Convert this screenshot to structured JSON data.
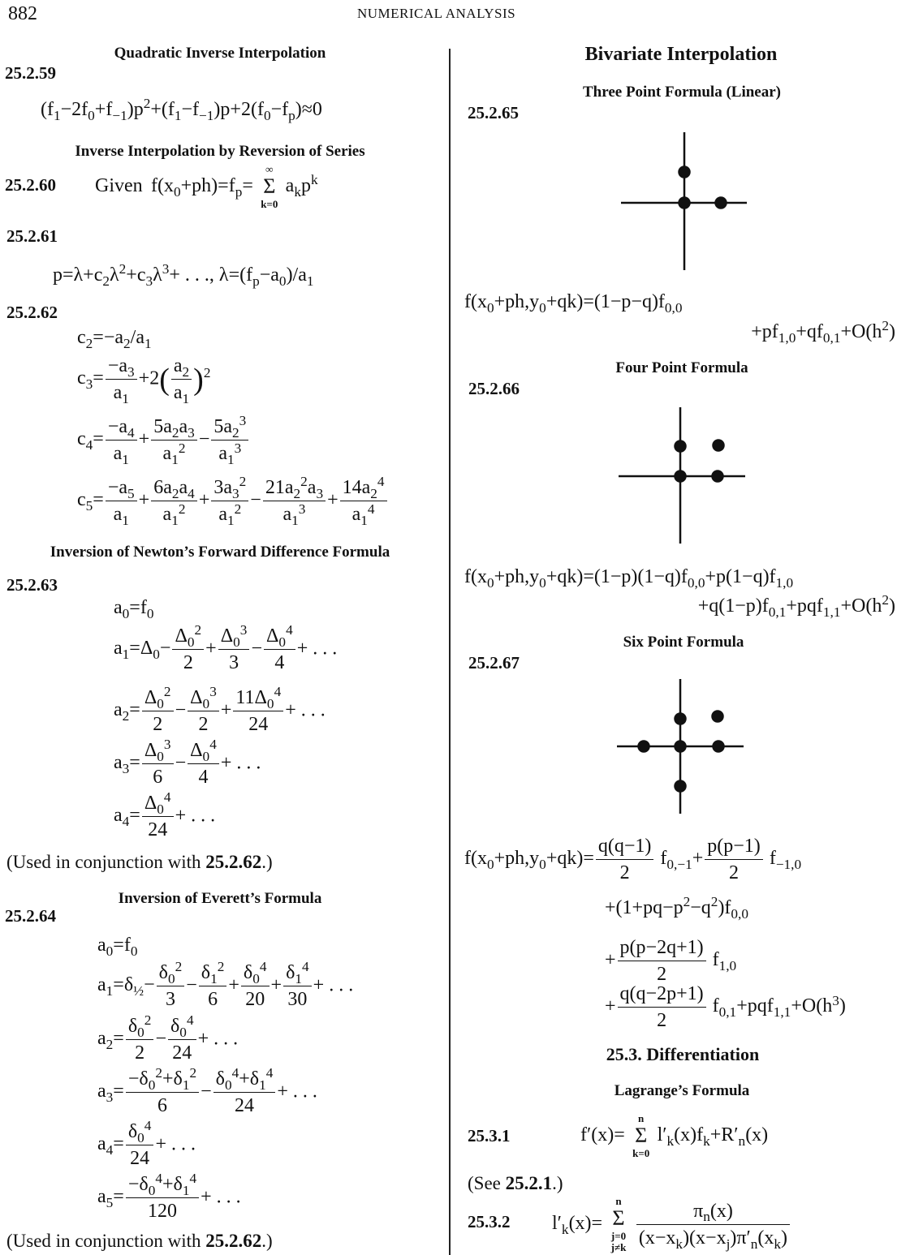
{
  "header": {
    "page_number": "882",
    "running_title": "NUMERICAL ANALYSIS"
  },
  "left": {
    "s1_title": "Quadratic Inverse Interpolation",
    "e59": {
      "label": "25.2.59",
      "f": [
        "(f_{1}−2f_{0}+f_{−1})p^{2}+(f_{1}−f_{−1})p+2(f_{0}−f_{p})≈0"
      ]
    },
    "s2_title": "Inverse Interpolation by Reversion of Series",
    "e60": {
      "label": "25.2.60",
      "given": "Given",
      "f": [
        "f(x_{0}+ph)=f_{p}=",
        {
          "sum": "Σ",
          "over": "∞",
          "under": "k=0"
        },
        "a_{k}p^{k}"
      ]
    },
    "e61": {
      "label": "25.2.61",
      "f": [
        "p=λ+c_{2}λ^{2}+c_{3}λ^{3}+ . . ., λ=(f_{p}−a_{0})/a_{1}"
      ]
    },
    "e62": {
      "label": "25.2.62",
      "c2": [
        "c_{2}=−a_{2}/a_{1}"
      ],
      "c3": [
        "c_{3}=",
        {
          "n": "−a_{3}",
          "d": "a_{1}"
        },
        "+2",
        {
          "big": "("
        },
        {
          "n": "a_{2}",
          "d": "a_{1}"
        },
        {
          "big": ")"
        },
        "^{2}"
      ],
      "c4": [
        "c_{4}=",
        {
          "n": "−a_{4}",
          "d": "a_{1}"
        },
        "+",
        {
          "n": "5a_{2}a_{3}",
          "d": "a_{1}^{2}"
        },
        "−",
        {
          "n": "5a_{2}^{3}",
          "d": "a_{1}^{3}"
        }
      ],
      "c5": [
        "c_{5}=",
        {
          "n": "−a_{5}",
          "d": "a_{1}"
        },
        "+",
        {
          "n": "6a_{2}a_{4}",
          "d": "a_{1}^{2}"
        },
        "+",
        {
          "n": "3a_{3}^{2}",
          "d": "a_{1}^{2}"
        },
        "−",
        {
          "n": "21a_{2}^{2}a_{3}",
          "d": "a_{1}^{3}"
        },
        "+",
        {
          "n": "14a_{2}^{4}",
          "d": "a_{1}^{4}"
        }
      ]
    },
    "s3_title": "Inversion of Newton’s Forward Difference Formula",
    "e63": {
      "label": "25.2.63",
      "a0": [
        "a_{0}=f_{0}"
      ],
      "a1": [
        "a_{1}=Δ_{0}−",
        {
          "n": "Δ_{0}^{2}",
          "d": "2"
        },
        "+",
        {
          "n": "Δ_{0}^{3}",
          "d": "3"
        },
        "−",
        {
          "n": "Δ_{0}^{4}",
          "d": "4"
        },
        "+ . . ."
      ],
      "a2": [
        "a_{2}=",
        {
          "n": "Δ_{0}^{2}",
          "d": "2"
        },
        "−",
        {
          "n": "Δ_{0}^{3}",
          "d": "2"
        },
        "+",
        {
          "n": "11Δ_{0}^{4}",
          "d": "24"
        },
        "+ . . ."
      ],
      "a3": [
        "a_{3}=",
        {
          "n": "Δ_{0}^{3}",
          "d": "6"
        },
        "−",
        {
          "n": "Δ_{0}^{4}",
          "d": "4"
        },
        "+ . . ."
      ],
      "a4": [
        "a_{4}=",
        {
          "n": "Δ_{0}^{4}",
          "d": "24"
        },
        "+ . . ."
      ]
    },
    "note1": {
      "pre": "(Used in conjunction with ",
      "ref": "25.2.62",
      "post": ".)"
    },
    "s4_title": "Inversion of Everett’s Formula",
    "e64": {
      "label": "25.2.64",
      "a0": [
        "a_{0}=f_{0}"
      ],
      "a1": [
        "a_{1}=δ_{½}−",
        {
          "n": "δ_{0}^{2}",
          "d": "3"
        },
        "−",
        {
          "n": "δ_{1}^{2}",
          "d": "6"
        },
        "+",
        {
          "n": "δ_{0}^{4}",
          "d": "20"
        },
        "+",
        {
          "n": "δ_{1}^{4}",
          "d": "30"
        },
        "+ . . ."
      ],
      "a2": [
        "a_{2}=",
        {
          "n": "δ_{0}^{2}",
          "d": "2"
        },
        "−",
        {
          "n": "δ_{0}^{4}",
          "d": "24"
        },
        "+ . . ."
      ],
      "a3": [
        "a_{3}=",
        {
          "n": "−δ_{0}^{2}+δ_{1}^{2}",
          "d": "6"
        },
        "−",
        {
          "n": "δ_{0}^{4}+δ_{1}^{4}",
          "d": "24"
        },
        "+ . . ."
      ],
      "a4": [
        "a_{4}=",
        {
          "n": "δ_{0}^{4}",
          "d": "24"
        },
        "+ . . ."
      ],
      "a5": [
        "a_{5}=",
        {
          "n": "−δ_{0}^{4}+δ_{1}^{4}",
          "d": "120"
        },
        "+ . . ."
      ]
    },
    "note2": {
      "pre": "(Used in conjunction with ",
      "ref": "25.2.62",
      "post": ".)"
    }
  },
  "right": {
    "title": "Bivariate Interpolation",
    "s1_title": "Three Point Formula (Linear)",
    "e65": {
      "label": "25.2.65",
      "l1": [
        "f(x_{0}+ph,y_{0}+qk)=(1−p−q)f_{0,0}"
      ],
      "l2": [
        "+pf_{1,0}+qf_{0,1}+O(h^{2})"
      ]
    },
    "s2_title": "Four Point Formula",
    "e66": {
      "label": "25.2.66",
      "l1": [
        "f(x_{0}+ph,y_{0}+qk)=(1−p)(1−q)f_{0,0}+p(1−q)f_{1,0}"
      ],
      "l2": [
        "+q(1−p)f_{0,1}+pqf_{1,1}+O(h^{2})"
      ]
    },
    "s3_title": "Six Point Formula",
    "e67": {
      "label": "25.2.67",
      "l1": [
        "f(x_{0}+ph,y_{0}+qk)=",
        {
          "n": "q(q−1)",
          "d": "2"
        },
        " f_{0,−1}+",
        {
          "n": "p(p−1)",
          "d": "2"
        },
        " f_{−1,0}"
      ],
      "l2": [
        "+(1+pq−p^{2}−q^{2})f_{0,0}"
      ],
      "l3": [
        "+",
        {
          "n": "p(p−2q+1)",
          "d": "2"
        },
        " f_{1,0}"
      ],
      "l4": [
        "+",
        {
          "n": "q(q−2p+1)",
          "d": "2"
        },
        " f_{0,1}+pqf_{1,1}+O(h^{3})"
      ]
    },
    "section_title": "25.3. Differentiation",
    "s4_title": "Lagrange’s Formula",
    "e31": {
      "label": "25.3.1",
      "f": [
        "f′(x)=",
        {
          "sum": "Σ",
          "over": "n",
          "under": "k=0"
        },
        "l′_{k}(x)f_{k}+R′_{n}(x)"
      ]
    },
    "see": {
      "pre": "(See ",
      "ref": "25.2.1",
      "post": ".)"
    },
    "e32": {
      "label": "25.3.2",
      "f": [
        "l′_{k}(x)=",
        {
          "sum": "Σ",
          "over": "n",
          "under": "j=0 j≠k"
        },
        {
          "n": "π_{n}(x)",
          "d": "(x−x_{k})(x−x_{j})π′_{n}(x_{k})"
        }
      ]
    }
  }
}
